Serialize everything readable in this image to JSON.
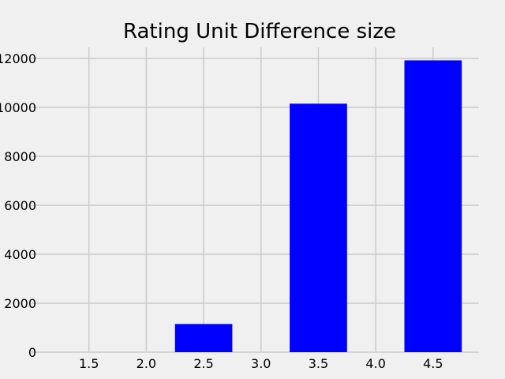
{
  "chart_data": {
    "type": "bar",
    "title": "Rating Unit Difference size",
    "xlabel": "",
    "ylabel": "",
    "categories": [
      2.5,
      3.5,
      4.5
    ],
    "values": [
      1150,
      10150,
      11920
    ],
    "bar_width": 0.5,
    "xlim": [
      1.0,
      4.9
    ],
    "ylim": [
      0,
      12450
    ],
    "x_ticks": [
      1.5,
      2.0,
      2.5,
      3.0,
      3.5,
      4.0,
      4.5
    ],
    "x_tick_labels": [
      "1.5",
      "2.0",
      "2.5",
      "3.0",
      "3.5",
      "4.0",
      "4.5"
    ],
    "y_ticks": [
      0,
      2000,
      4000,
      6000,
      8000,
      10000,
      12000
    ],
    "y_tick_labels": [
      "0",
      "2000",
      "4000",
      "6000",
      "8000",
      "10000",
      "12000"
    ],
    "grid": true,
    "legend": "none",
    "bar_color": "#0000ff",
    "grid_color": "#cbcbcb",
    "background_color": "#f0f0f0"
  }
}
